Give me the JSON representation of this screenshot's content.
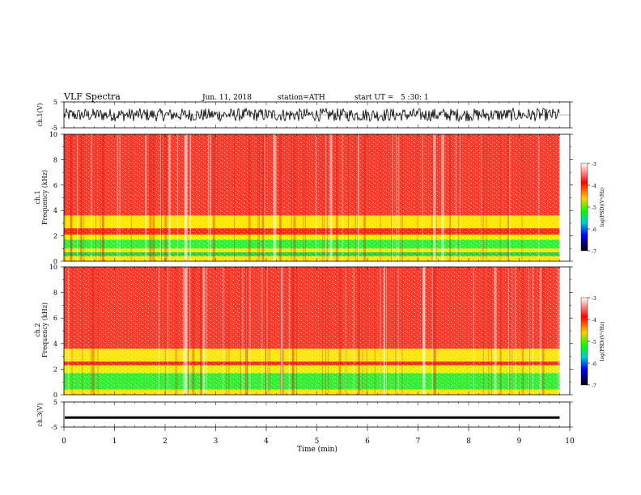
{
  "header": {
    "title": "VLF Spectra",
    "date": "Jun. 11, 2018",
    "station": "station=ATH",
    "start_time": "start UT =   5 :30: 1"
  },
  "chart_data": [
    {
      "id": "ch1-waveform",
      "type": "line",
      "ylabel": "ch.1(V)",
      "ylim": [
        -5,
        5
      ],
      "y_ticks": [
        "5",
        "-5"
      ],
      "x_range_min": [
        0,
        9.8
      ],
      "amplitude_band_v": [
        -2.5,
        2.5
      ]
    },
    {
      "id": "ch1-spectrogram",
      "type": "heatmap",
      "ylabel": "ch.1 Frequency (kHz)",
      "ylim": [
        0,
        10
      ],
      "y_ticks": [
        "0",
        "2",
        "4",
        "6",
        "8",
        "10"
      ],
      "x_range_min": [
        0,
        9.8
      ],
      "bands": [
        {
          "f_khz": [
            0.0,
            0.4
          ],
          "color": "#ffe600"
        },
        {
          "f_khz": [
            0.4,
            0.7
          ],
          "color": "#2ecc40"
        },
        {
          "f_khz": [
            0.7,
            1.0
          ],
          "color": "#ffe600"
        },
        {
          "f_khz": [
            1.0,
            1.7
          ],
          "color": "#33ee33"
        },
        {
          "f_khz": [
            1.7,
            2.1
          ],
          "color": "#e8f000"
        },
        {
          "f_khz": [
            2.1,
            2.6
          ],
          "color": "#ff2a1a"
        },
        {
          "f_khz": [
            2.6,
            3.6
          ],
          "color": "#ffe600"
        },
        {
          "f_khz": [
            3.6,
            10.0
          ],
          "color": "#ff3a2a"
        }
      ],
      "colorbar": {
        "label": "log(PSD)(V²/Hz)",
        "ticks": [
          "-3",
          "-4",
          "-5",
          "-6",
          "-7"
        ]
      }
    },
    {
      "id": "ch2-spectrogram",
      "type": "heatmap",
      "ylabel": "ch.2 Frequency (kHz)",
      "ylim": [
        0,
        10
      ],
      "y_ticks": [
        "0",
        "2",
        "4",
        "6",
        "8",
        "10"
      ],
      "x_range_min": [
        0,
        9.8
      ],
      "bands": [
        {
          "f_khz": [
            0.0,
            0.4
          ],
          "color": "#ffe600"
        },
        {
          "f_khz": [
            0.4,
            1.7
          ],
          "color": "#33ee33"
        },
        {
          "f_khz": [
            1.7,
            2.3
          ],
          "color": "#e8f000"
        },
        {
          "f_khz": [
            2.3,
            2.6
          ],
          "color": "#ff2a1a"
        },
        {
          "f_khz": [
            2.6,
            3.6
          ],
          "color": "#ffe600"
        },
        {
          "f_khz": [
            3.6,
            10.0
          ],
          "color": "#ff3a2a"
        }
      ],
      "colorbar": {
        "label": "log(PSD)(V²/Hz)",
        "ticks": [
          "-3",
          "-4",
          "-5",
          "-6",
          "-7"
        ]
      }
    },
    {
      "id": "ch3-waveform",
      "type": "line",
      "ylabel": "ch.3(V)",
      "ylim": [
        -5,
        5
      ],
      "y_ticks": [
        "5",
        "-5"
      ],
      "x_range_min": [
        0,
        9.8
      ],
      "value_v": -1.2
    }
  ],
  "x_axis": {
    "label": "Time (min)",
    "ticks": [
      "0",
      "1",
      "2",
      "3",
      "4",
      "5",
      "6",
      "7",
      "8",
      "9",
      "10"
    ],
    "xlim": [
      0,
      10
    ]
  },
  "colors": {
    "colorbar": [
      "#ffffff",
      "#ff0000",
      "#ffcc00",
      "#00ff00",
      "#00cccc",
      "#0000ff",
      "#000000"
    ]
  }
}
